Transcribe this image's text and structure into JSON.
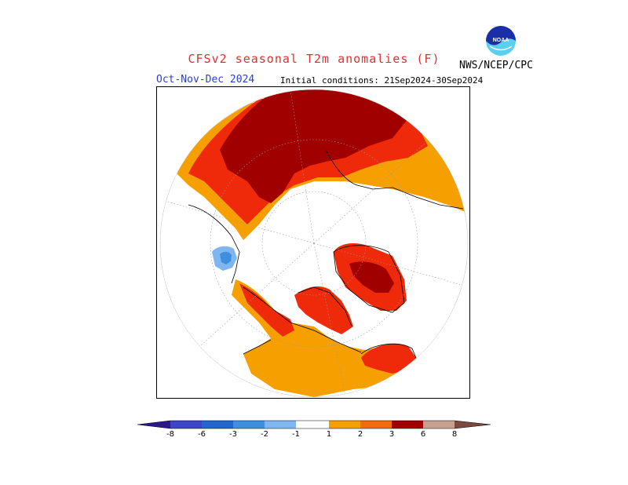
{
  "header": {
    "title": "CFSv2 seasonal T2m anomalies (F)",
    "period": "Oct-Nov-Dec 2024",
    "initial_conditions": "Initial conditions: 21Sep2024-30Sep2024",
    "agency": "NWS/NCEP/CPC",
    "logo_text": "NOAA"
  },
  "colorbar": {
    "ticks": [
      "-8",
      "-6",
      "-3",
      "-2",
      "-1",
      "1",
      "2",
      "3",
      "6",
      "8"
    ],
    "colors": {
      "lt_-8": "#2a1a8c",
      "-8_-6": "#3d46c8",
      "-6_-3": "#2166cc",
      "-3_-2": "#3f8fe0",
      "-2_-1": "#7fb6f0",
      "-1_1": "#ffffff",
      "1_2": "#f5a000",
      "2_3": "#f06a10",
      "3_6": "#ee2a0a",
      "6_8": "#a00000",
      "gt_8": "#c8a090",
      "gt_8_tip": "#7a4a40"
    }
  },
  "map": {
    "projection": "north polar stereographic",
    "colors": {
      "dark_red": "#a00000",
      "red": "#ee2a0a",
      "orange_red": "#f06a10",
      "orange": "#f5a000",
      "light_blue": "#7fb6f0",
      "blue": "#3f8fe0"
    }
  }
}
